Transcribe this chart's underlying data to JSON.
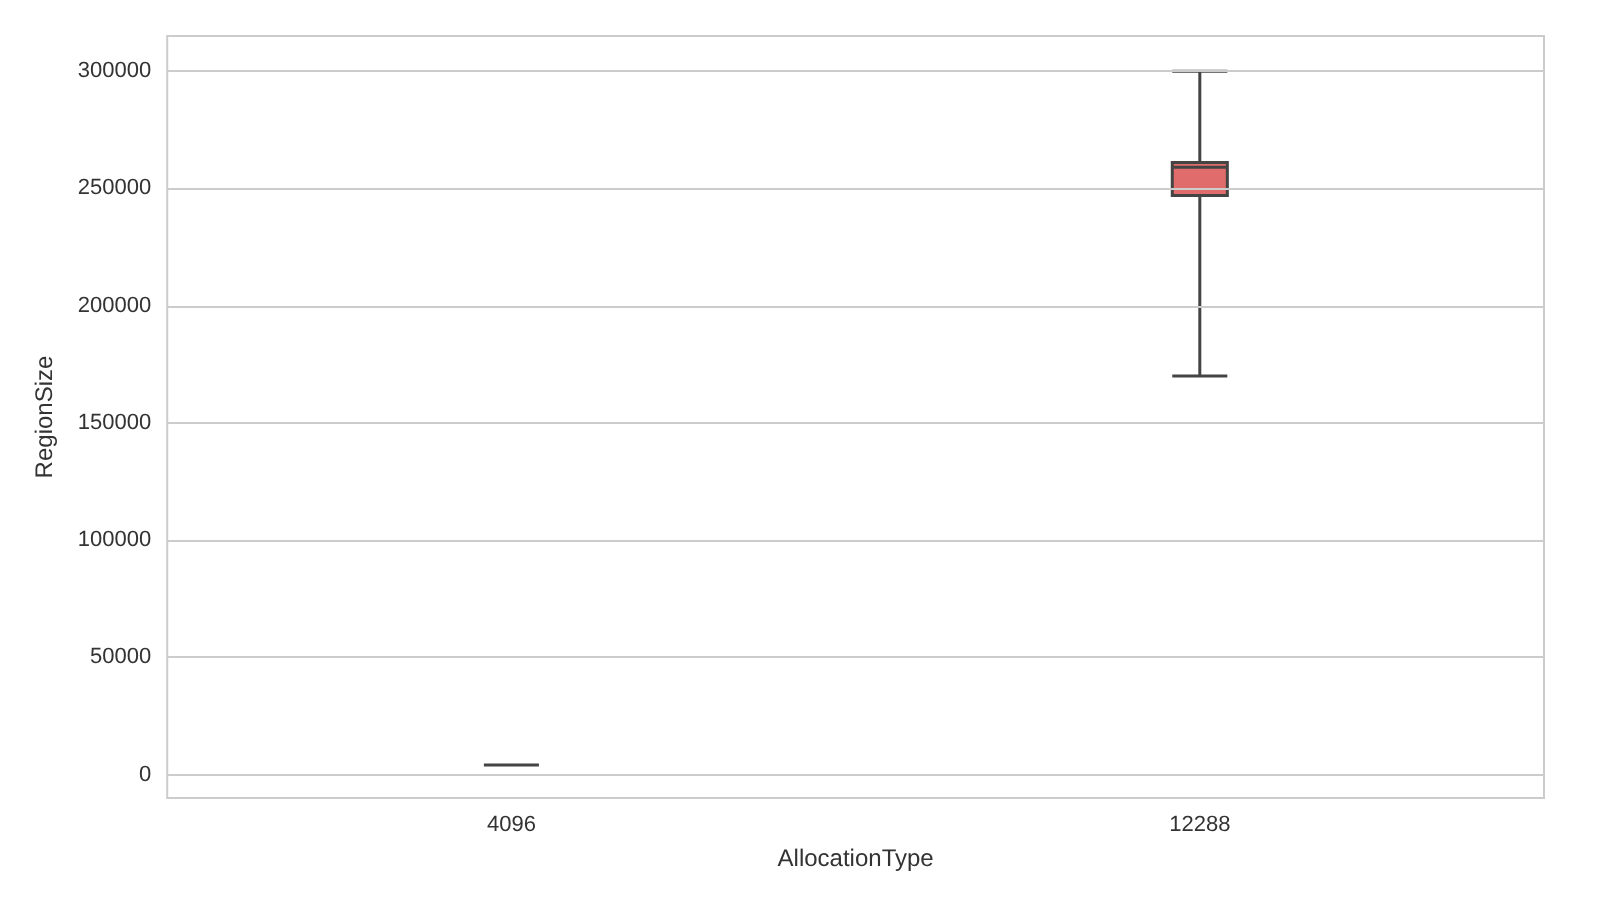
{
  "chart_data": {
    "type": "box",
    "xlabel": "AllocationType",
    "ylabel": "RegionSize",
    "categories": [
      "4096",
      "12288"
    ],
    "colors": [
      "#444444",
      "#e06c6b"
    ],
    "boxes": [
      {
        "low": 4096,
        "q1": 4096,
        "median": 4096,
        "q3": 4096,
        "high": 4096
      },
      {
        "low": 170000,
        "q1": 247000,
        "median": 259000,
        "q3": 261000,
        "high": 300000
      }
    ],
    "ylim": [
      -10000,
      315000
    ],
    "yticks": [
      0,
      50000,
      100000,
      150000,
      200000,
      250000,
      300000
    ],
    "grid": "y"
  }
}
